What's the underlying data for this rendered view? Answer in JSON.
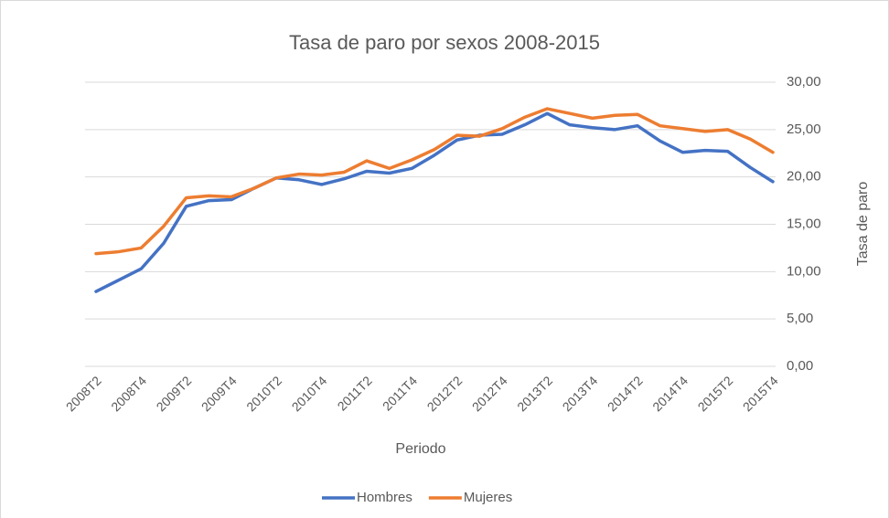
{
  "chart_data": {
    "type": "line",
    "title": "Tasa de paro por sexos 2008-2015",
    "x_label": "Periodo",
    "y_label": "Tasa de paro",
    "categories": [
      "2008T2",
      null,
      "2008T4",
      null,
      "2009T2",
      null,
      "2009T4",
      null,
      "2010T2",
      null,
      "2010T4",
      null,
      "2011T2",
      null,
      "2011T4",
      null,
      "2012T2",
      null,
      "2012T4",
      null,
      "2013T2",
      null,
      "2013T4",
      null,
      "2014T2",
      null,
      "2014T4",
      null,
      "2015T2",
      null,
      "2015T4"
    ],
    "series": [
      {
        "name": "Hombres",
        "color": "#4472c4",
        "values": [
          7.9,
          9.1,
          10.3,
          13.0,
          16.9,
          17.5,
          17.6,
          18.8,
          19.9,
          19.7,
          19.2,
          19.8,
          20.6,
          20.4,
          20.9,
          22.3,
          23.9,
          24.4,
          24.5,
          25.5,
          26.7,
          25.5,
          25.2,
          25.0,
          25.4,
          23.8,
          22.6,
          22.8,
          22.7,
          21.0,
          19.5
        ]
      },
      {
        "name": "Mujeres",
        "color": "#ed7d31",
        "values": [
          11.9,
          12.1,
          12.5,
          14.8,
          17.8,
          18.0,
          17.9,
          18.8,
          19.9,
          20.3,
          20.2,
          20.5,
          21.7,
          20.9,
          21.8,
          22.9,
          24.4,
          24.3,
          25.1,
          26.3,
          27.2,
          26.7,
          26.2,
          26.5,
          26.6,
          25.4,
          25.1,
          24.8,
          25.0,
          24.0,
          22.6
        ]
      }
    ],
    "ylim": [
      0,
      30
    ],
    "yticks": [
      {
        "value": 0,
        "label": "0,00"
      },
      {
        "value": 5,
        "label": "5,00"
      },
      {
        "value": 10,
        "label": "10,00"
      },
      {
        "value": 15,
        "label": "15,00"
      },
      {
        "value": 20,
        "label": "20,00"
      },
      {
        "value": 25,
        "label": "25,00"
      },
      {
        "value": 30,
        "label": "30,00"
      }
    ],
    "grid": true,
    "y_axis_side": "right",
    "legend": "bottom"
  }
}
